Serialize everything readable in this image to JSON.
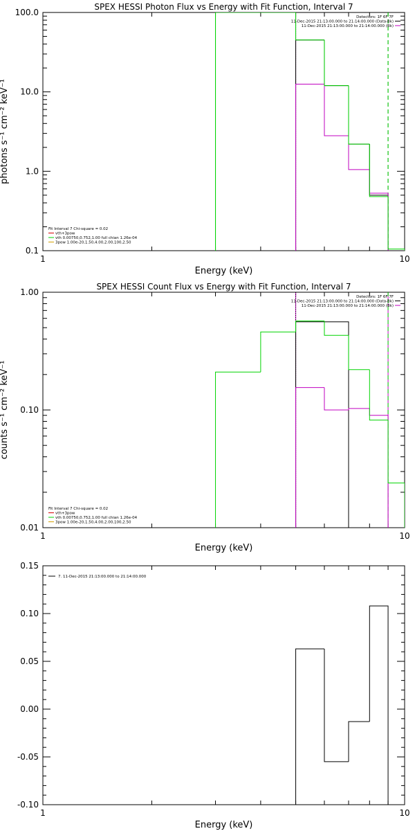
{
  "colors": {
    "black": "#000000",
    "green": "#00d400",
    "magenta": "#c000c0",
    "red": "#d40000",
    "orange": "#d4a000"
  },
  "chart_data": [
    {
      "type": "line",
      "title": "SPEX HESSI Photon Flux vs Energy with Fit Function, Interval 7",
      "xlabel": "Energy (keV)",
      "ylabel": "photons s⁻¹ cm⁻² keV⁻¹",
      "xscale": "log",
      "yscale": "log",
      "xlim": [
        1,
        10
      ],
      "ylim": [
        0.1,
        100
      ],
      "xticks": [
        {
          "v": 1,
          "label": "1"
        },
        {
          "v": 10,
          "label": "10"
        }
      ],
      "yticks": [
        {
          "v": 0.1,
          "label": "0.1"
        },
        {
          "v": 1,
          "label": "1.0"
        },
        {
          "v": 10,
          "label": "10.0"
        },
        {
          "v": 100,
          "label": "100.0"
        }
      ],
      "header_lines": [
        "Detectors: 1F 6F 7F",
        "11-Dec-2015 21:13:00.000 to 21:14:00.000 (Data-Bk)",
        "11-Dec-2015 21:13:00.000 to 21:14:00.000 (Bk)"
      ],
      "legend": [
        "Fit Interval 7   Chi-square = 0.02",
        "vth+3pow",
        "vth 0.00750,0.752,1.00  full chian 1.26e-04",
        "3pow 1.00e-20,1.50,4.00,2.00,100,2.50"
      ],
      "edges": [
        3,
        4,
        5,
        6,
        7,
        8,
        9,
        10
      ],
      "series": [
        {
          "name": "Data-Bk",
          "color": "black",
          "values": [
            null,
            null,
            45,
            12,
            2.2,
            0.5,
            null
          ]
        },
        {
          "name": "Bk",
          "color": "magenta",
          "values": [
            null,
            null,
            12.5,
            2.8,
            1.05,
            0.53,
            null
          ]
        },
        {
          "name": "vth+3pow",
          "color": "green",
          "values": [
            100,
            100,
            45,
            12,
            2.2,
            0.48,
            0.105
          ]
        }
      ],
      "vlines": [
        {
          "x": 3,
          "color": "green",
          "style": "solid"
        },
        {
          "x": 5,
          "color": "magenta",
          "style": "solid"
        },
        {
          "x": 5,
          "color": "green",
          "style": "dotted"
        },
        {
          "x": 9,
          "color": "black",
          "style": "dashed"
        },
        {
          "x": 9,
          "color": "green",
          "style": "dashed"
        }
      ]
    },
    {
      "type": "line",
      "title": "SPEX HESSI Count Flux vs Energy with Fit Function, Interval 7",
      "xlabel": "Energy (keV)",
      "ylabel": "counts s⁻¹ cm⁻² keV⁻¹",
      "xscale": "log",
      "yscale": "log",
      "xlim": [
        1,
        10
      ],
      "ylim": [
        0.01,
        1
      ],
      "xticks": [
        {
          "v": 1,
          "label": "1"
        },
        {
          "v": 10,
          "label": "10"
        }
      ],
      "yticks": [
        {
          "v": 0.01,
          "label": "0.01"
        },
        {
          "v": 0.1,
          "label": "0.10"
        },
        {
          "v": 1,
          "label": "1.00"
        }
      ],
      "header_lines": [
        "Detectors: 1F 6F 7F",
        "11-Dec-2015 21:13:00.000 to 21:14:00.000 (Data-Bk)",
        "11-Dec-2015 21:13:00.000 to 21:14:00.000 (Bk)"
      ],
      "legend": [
        "Fit Interval 7   Chi-square = 0.02",
        "vth+3pow",
        "vth 0.00750,0.752,1.00  full chian 1.26e-04",
        "3pow 1.00e-20,1.50,4.00,2.00,100,2.50"
      ],
      "edges": [
        3,
        4,
        5,
        6,
        7,
        8,
        9,
        10
      ],
      "series": [
        {
          "name": "Data-Bk",
          "color": "black",
          "values": [
            null,
            null,
            0.56,
            0.56,
            null,
            null,
            null
          ]
        },
        {
          "name": "Bk",
          "color": "magenta",
          "values": [
            null,
            null,
            0.155,
            0.1,
            0.103,
            0.09,
            null
          ]
        },
        {
          "name": "vth+3pow",
          "color": "green",
          "values": [
            0.21,
            0.46,
            0.57,
            0.43,
            0.22,
            0.082,
            0.024
          ]
        }
      ],
      "vlines": [
        {
          "x": 5,
          "color": "magenta",
          "style": "solid"
        },
        {
          "x": 5,
          "color": "black",
          "style": "dotted"
        },
        {
          "x": 9,
          "color": "magenta",
          "style": "solid"
        },
        {
          "x": 9,
          "color": "green",
          "style": "dashed"
        }
      ]
    },
    {
      "type": "line",
      "title": "",
      "xlabel": "Energy (keV)",
      "ylabel": "",
      "xscale": "log",
      "yscale": "linear",
      "xlim": [
        1,
        10
      ],
      "ylim": [
        -0.1,
        0.15
      ],
      "xticks": [
        {
          "v": 1,
          "label": "1"
        },
        {
          "v": 10,
          "label": "10"
        }
      ],
      "yticks": [
        {
          "v": -0.1,
          "label": "-0.10"
        },
        {
          "v": -0.05,
          "label": "-0.05"
        },
        {
          "v": 0,
          "label": "0.00"
        },
        {
          "v": 0.05,
          "label": "0.05"
        },
        {
          "v": 0.1,
          "label": "0.10"
        },
        {
          "v": 0.15,
          "label": "0.15"
        }
      ],
      "legend": [
        "7. 11-Dec-2015 21:13:00.000 to 21:14:00.000"
      ],
      "edges": [
        5,
        6,
        7,
        8,
        9
      ],
      "series": [
        {
          "name": "7. 11-Dec-2015 21:13:00.000 to 21:14:00.000",
          "color": "black",
          "values": [
            0.063,
            -0.055,
            -0.013,
            0.108
          ]
        }
      ],
      "vlines": []
    }
  ]
}
